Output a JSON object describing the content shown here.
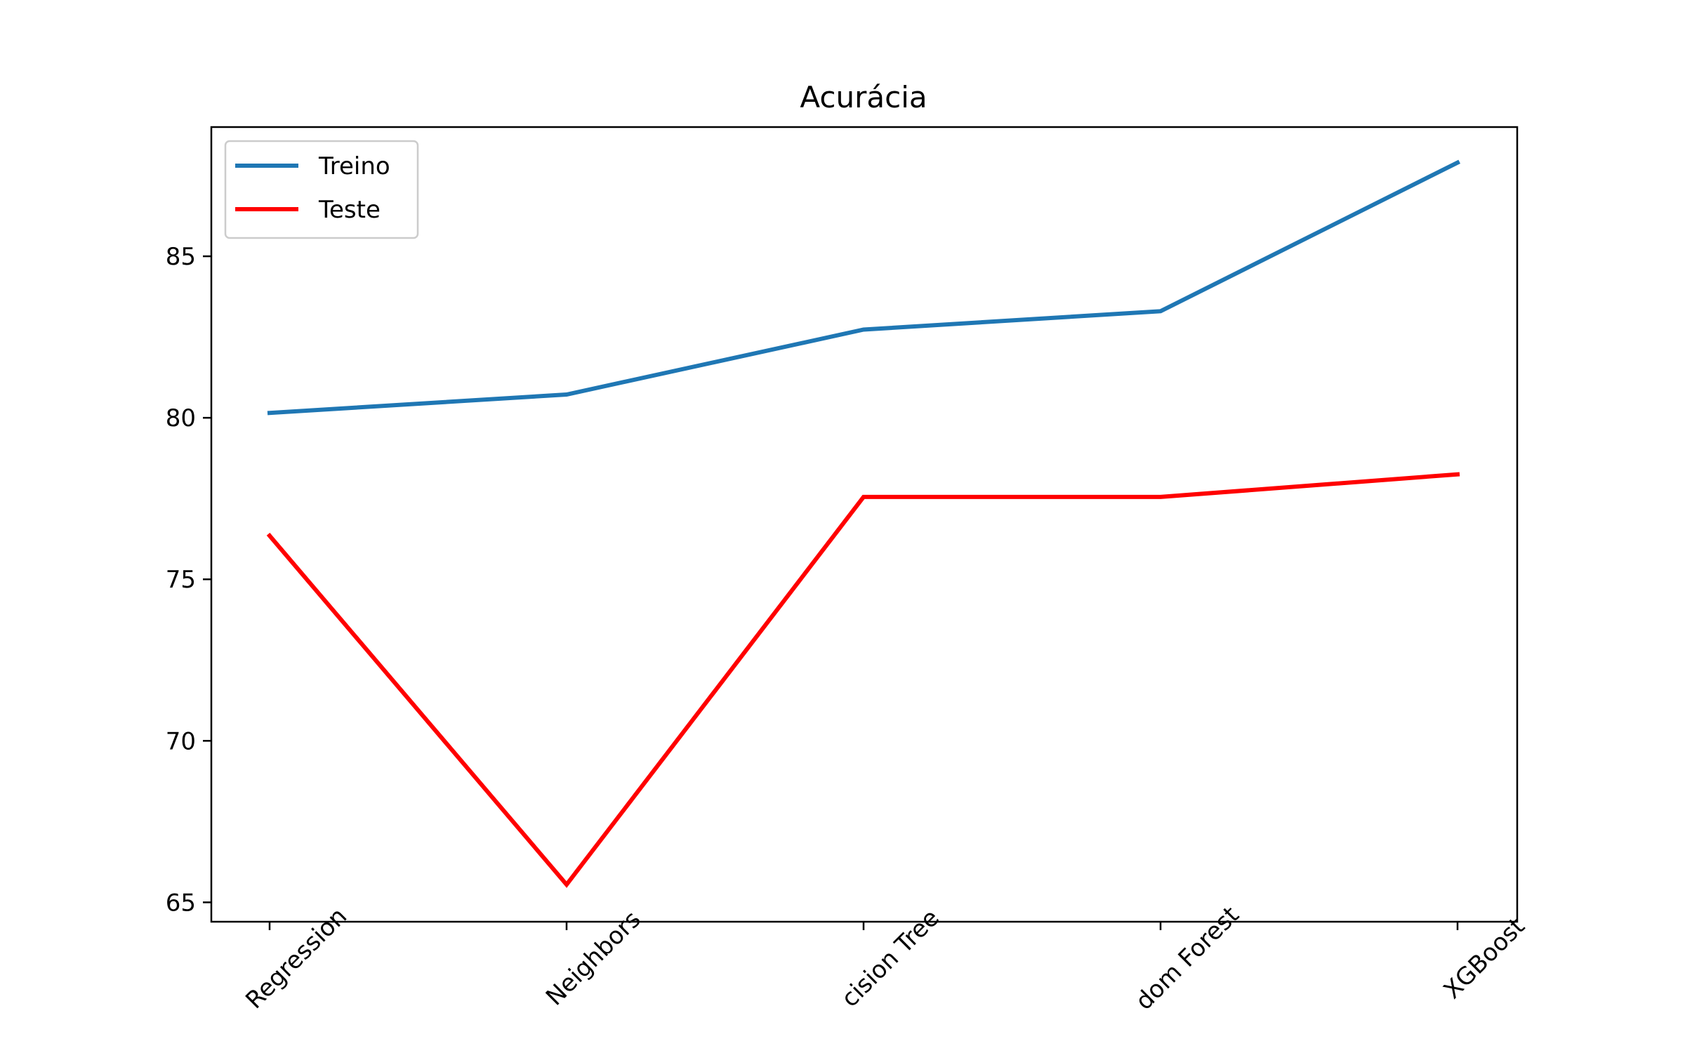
{
  "chart_data": {
    "type": "line",
    "title": "Acurácia",
    "xlabel": "",
    "ylabel": "",
    "categories": [
      "Logistic Regression",
      "K-Nearest Neighbors",
      "Decision Tree",
      "Random Forest",
      "XGBoost"
    ],
    "x_tick_labels_visible": [
      "Regression",
      "Neighbors",
      "cision Tree",
      "dom Forest",
      "XGBoost"
    ],
    "yticks": [
      65,
      70,
      75,
      80,
      85
    ],
    "ylim": [
      64.4,
      89.0
    ],
    "grid": false,
    "legend_position": "top-left",
    "series": [
      {
        "name": "Treino",
        "color": "#1f77b4",
        "values": [
          80.15,
          80.72,
          82.73,
          83.3,
          87.9
        ]
      },
      {
        "name": "Teste",
        "color": "#ff0000",
        "values": [
          76.35,
          65.55,
          77.55,
          77.55,
          78.25
        ]
      }
    ]
  }
}
